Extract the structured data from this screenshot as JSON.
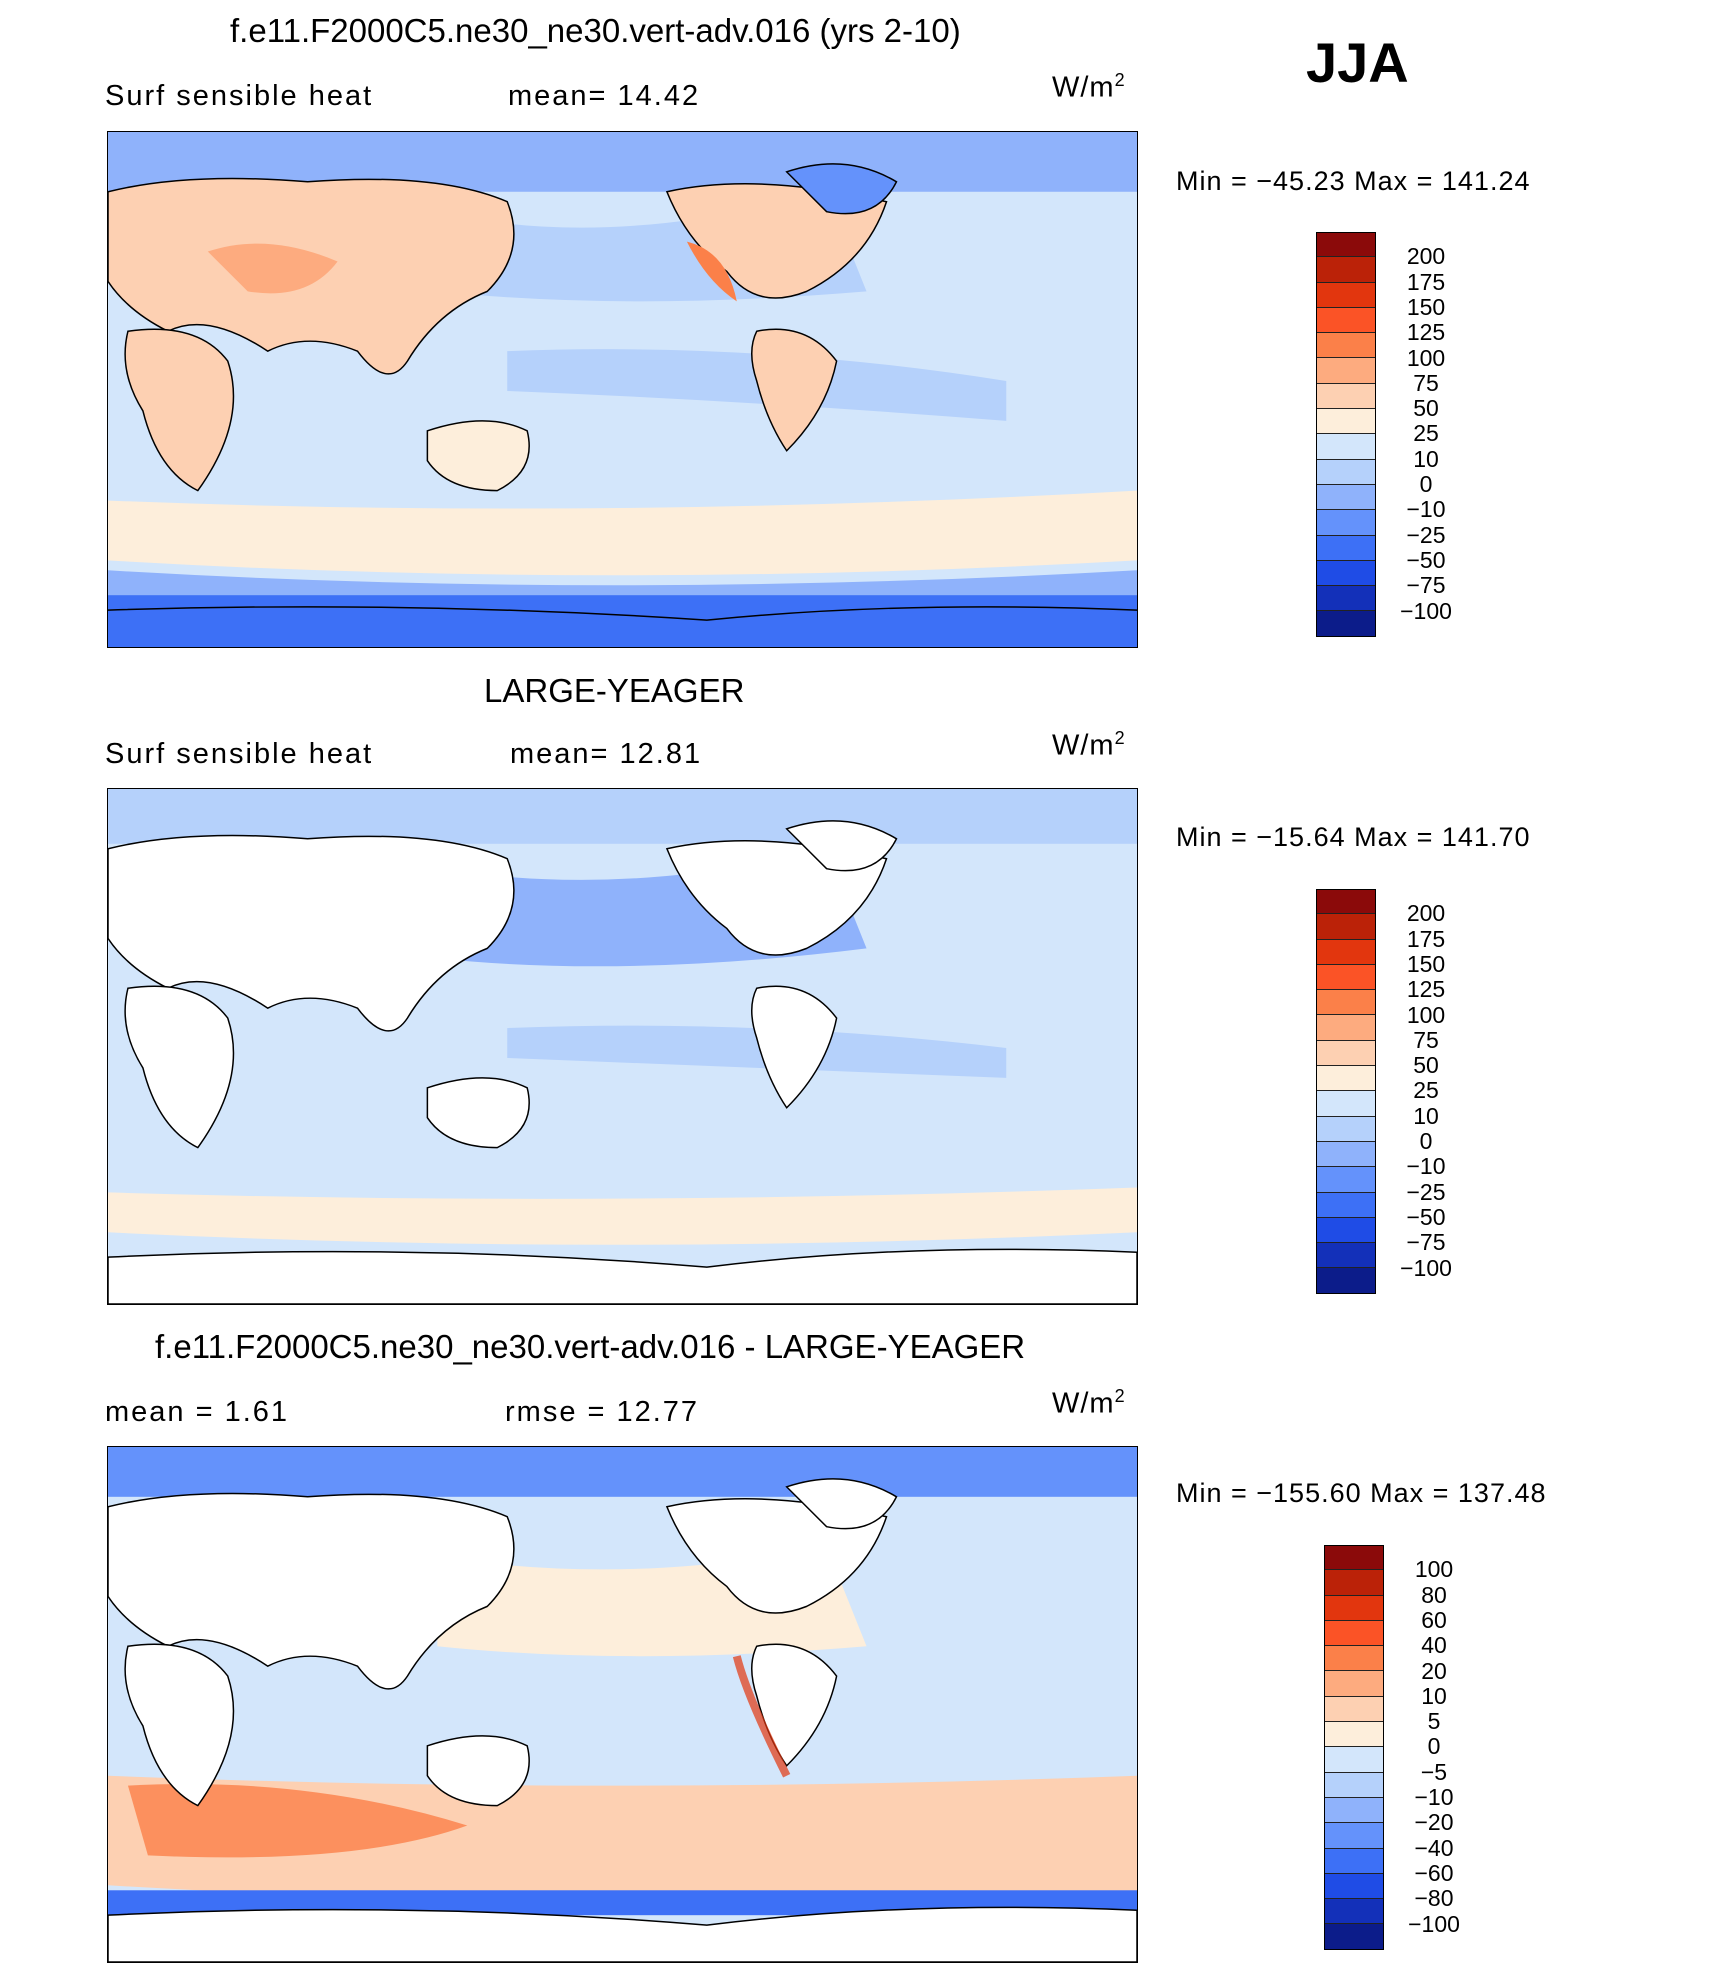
{
  "figure": {
    "season": "JJA"
  },
  "panels": [
    {
      "title": "f.e11.F2000C5.ne30_ne30.vert-adv.016 (yrs 2-10)",
      "left_label": "Surf  sensible  heat",
      "stat_label": "mean=   14.42",
      "units": "W/m",
      "units_exp": "2",
      "minmax": "Min  =  −45.23  Max  =  141.24",
      "colorbar": {
        "colors": [
          "#8b0a0a",
          "#bb2208",
          "#e2360e",
          "#fb5326",
          "#fb8049",
          "#fdab7f",
          "#fdd0b2",
          "#fdeedb",
          "#d3e6fb",
          "#b5d1fb",
          "#8fb2fb",
          "#6492fb",
          "#3d70f6",
          "#1f4ce6",
          "#1330b9",
          "#0c1c8a"
        ],
        "ticks": [
          "200",
          "175",
          "150",
          "125",
          "100",
          "75",
          "50",
          "25",
          "10",
          "0",
          "−10",
          "−25",
          "−50",
          "−75",
          "−100"
        ]
      }
    },
    {
      "title": "LARGE-YEAGER",
      "left_label": "Surf  sensible  heat",
      "stat_label": "mean=   12.81",
      "units": "W/m",
      "units_exp": "2",
      "minmax": "Min  =  −15.64  Max  =  141.70",
      "colorbar": {
        "colors": [
          "#8b0a0a",
          "#bb2208",
          "#e2360e",
          "#fb5326",
          "#fb8049",
          "#fdab7f",
          "#fdd0b2",
          "#fdeedb",
          "#d3e6fb",
          "#b5d1fb",
          "#8fb2fb",
          "#6492fb",
          "#3d70f6",
          "#1f4ce6",
          "#1330b9",
          "#0c1c8a"
        ],
        "ticks": [
          "200",
          "175",
          "150",
          "125",
          "100",
          "75",
          "50",
          "25",
          "10",
          "0",
          "−10",
          "−25",
          "−50",
          "−75",
          "−100"
        ]
      }
    },
    {
      "title": "f.e11.F2000C5.ne30_ne30.vert-adv.016 - LARGE-YEAGER",
      "left_label": "mean  =      1.61",
      "stat_label": "rmse  =     12.77",
      "units": "W/m",
      "units_exp": "2",
      "minmax": "Min  =  −155.60  Max  =  137.48",
      "colorbar": {
        "colors": [
          "#8b0a0a",
          "#bb2208",
          "#e2360e",
          "#fb5326",
          "#fb8049",
          "#fdab7f",
          "#fdd0b2",
          "#fdeedb",
          "#d3e6fb",
          "#b5d1fb",
          "#8fb2fb",
          "#6492fb",
          "#3d70f6",
          "#1f4ce6",
          "#1330b9",
          "#0c1c8a"
        ],
        "ticks": [
          "100",
          "80",
          "60",
          "40",
          "20",
          "10",
          "5",
          "0",
          "−5",
          "−10",
          "−20",
          "−40",
          "−60",
          "−80",
          "−100"
        ]
      }
    }
  ]
}
